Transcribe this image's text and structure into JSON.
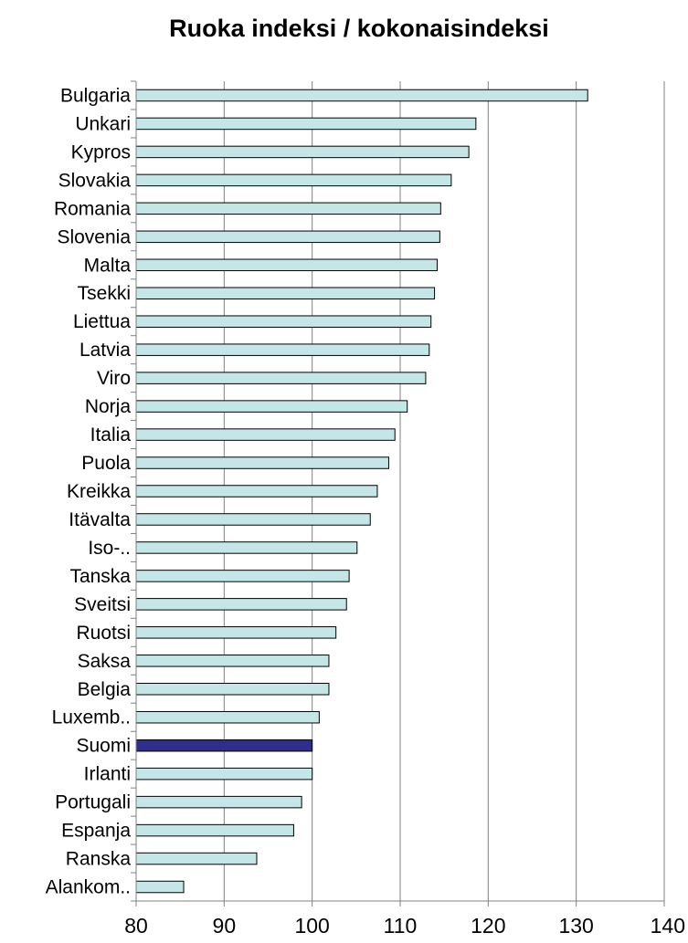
{
  "chart_data": {
    "type": "bar",
    "orientation": "horizontal",
    "title": "Ruoka indeksi / kokonaisindeksi",
    "categories": [
      "Bulgaria",
      "Unkari",
      "Kypros",
      "Slovakia",
      "Romania",
      "Slovenia",
      "Malta",
      "Tsekki",
      "Liettua",
      "Latvia",
      "Viro",
      "Norja",
      "Italia",
      "Puola",
      "Kreikka",
      "Itävalta",
      "Iso-..",
      "Tanska",
      "Sveitsi",
      "Ruotsi",
      "Saksa",
      "Belgia",
      "Luxemb..",
      "Suomi",
      "Irlanti",
      "Portugali",
      "Espanja",
      "Ranska",
      "Alankom.."
    ],
    "values": [
      131.3,
      118.6,
      117.8,
      115.8,
      114.6,
      114.5,
      114.2,
      113.9,
      113.5,
      113.3,
      112.9,
      110.8,
      109.4,
      108.7,
      107.4,
      106.6,
      105.1,
      104.2,
      103.9,
      102.7,
      101.9,
      101.9,
      100.8,
      100,
      100,
      98.8,
      97.9,
      93.7,
      85.4
    ],
    "highlight": "Suomi",
    "xlim": [
      80,
      140
    ],
    "xticks": [
      80,
      90,
      100,
      110,
      120,
      130,
      140
    ],
    "grid": "vertical",
    "colors": {
      "bar": "#c4e6e6",
      "highlight": "#2e2e8c",
      "border": "#000000",
      "grid": "#808080"
    }
  }
}
